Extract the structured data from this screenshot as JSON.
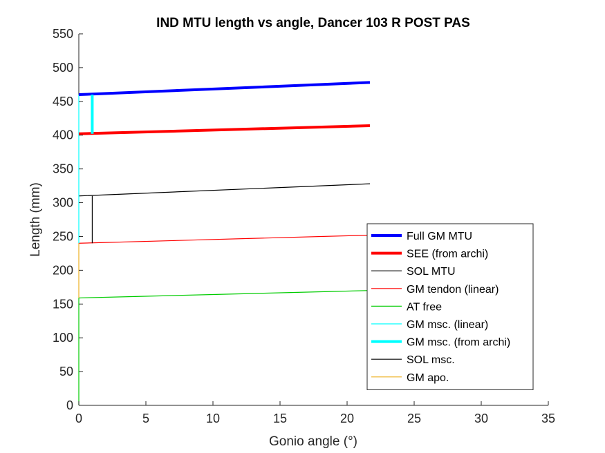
{
  "chart_data": {
    "type": "line",
    "title": "IND MTU length vs angle, Dancer 103 R POST PAS",
    "xlabel": "Gonio angle (°)",
    "ylabel": "Length (mm)",
    "xlim": [
      0,
      35
    ],
    "ylim": [
      0,
      550
    ],
    "xticks": [
      0,
      5,
      10,
      15,
      20,
      25,
      30,
      35
    ],
    "yticks": [
      0,
      50,
      100,
      150,
      200,
      250,
      300,
      350,
      400,
      450,
      500,
      550
    ],
    "grid": false,
    "legend_position": "bottom-right",
    "series": [
      {
        "name": "Full GM MTU",
        "color": "#0000ff",
        "width": "thick",
        "points": [
          [
            0,
            460
          ],
          [
            21.7,
            478
          ]
        ]
      },
      {
        "name": "SEE (from archi)",
        "color": "#ff0000",
        "width": "thick",
        "points": [
          [
            0,
            402
          ],
          [
            21.7,
            414
          ]
        ]
      },
      {
        "name": "SOL MTU",
        "color": "#000000",
        "width": "thin",
        "points": [
          [
            0,
            310
          ],
          [
            21.7,
            328
          ]
        ]
      },
      {
        "name": "GM tendon (linear)",
        "color": "#ff0000",
        "width": "thin",
        "points": [
          [
            0,
            240
          ],
          [
            21.7,
            252
          ]
        ]
      },
      {
        "name": "AT free",
        "color": "#00cc00",
        "width": "thin",
        "points": [
          [
            0,
            159
          ],
          [
            21.7,
            170
          ]
        ]
      },
      {
        "name": "GM msc. (linear)",
        "color": "#00ffff",
        "width": "thin",
        "points": [
          [
            0,
            240
          ],
          [
            0,
            460
          ]
        ]
      },
      {
        "name": "GM msc. (from archi)",
        "color": "#00ffff",
        "width": "thick",
        "points": [
          [
            1,
            402
          ],
          [
            1,
            460
          ]
        ]
      },
      {
        "name": "SOL msc.",
        "color": "#000000",
        "width": "thin",
        "points": [
          [
            1,
            240
          ],
          [
            1,
            310
          ]
        ]
      },
      {
        "name": "GM apo.",
        "color": "#edb120",
        "width": "thin",
        "points": [
          [
            0,
            159
          ],
          [
            0,
            240
          ]
        ]
      }
    ],
    "extra_segments": [
      {
        "color": "#00cc00",
        "width": "thin",
        "points": [
          [
            0,
            0
          ],
          [
            0,
            159
          ]
        ]
      }
    ]
  }
}
